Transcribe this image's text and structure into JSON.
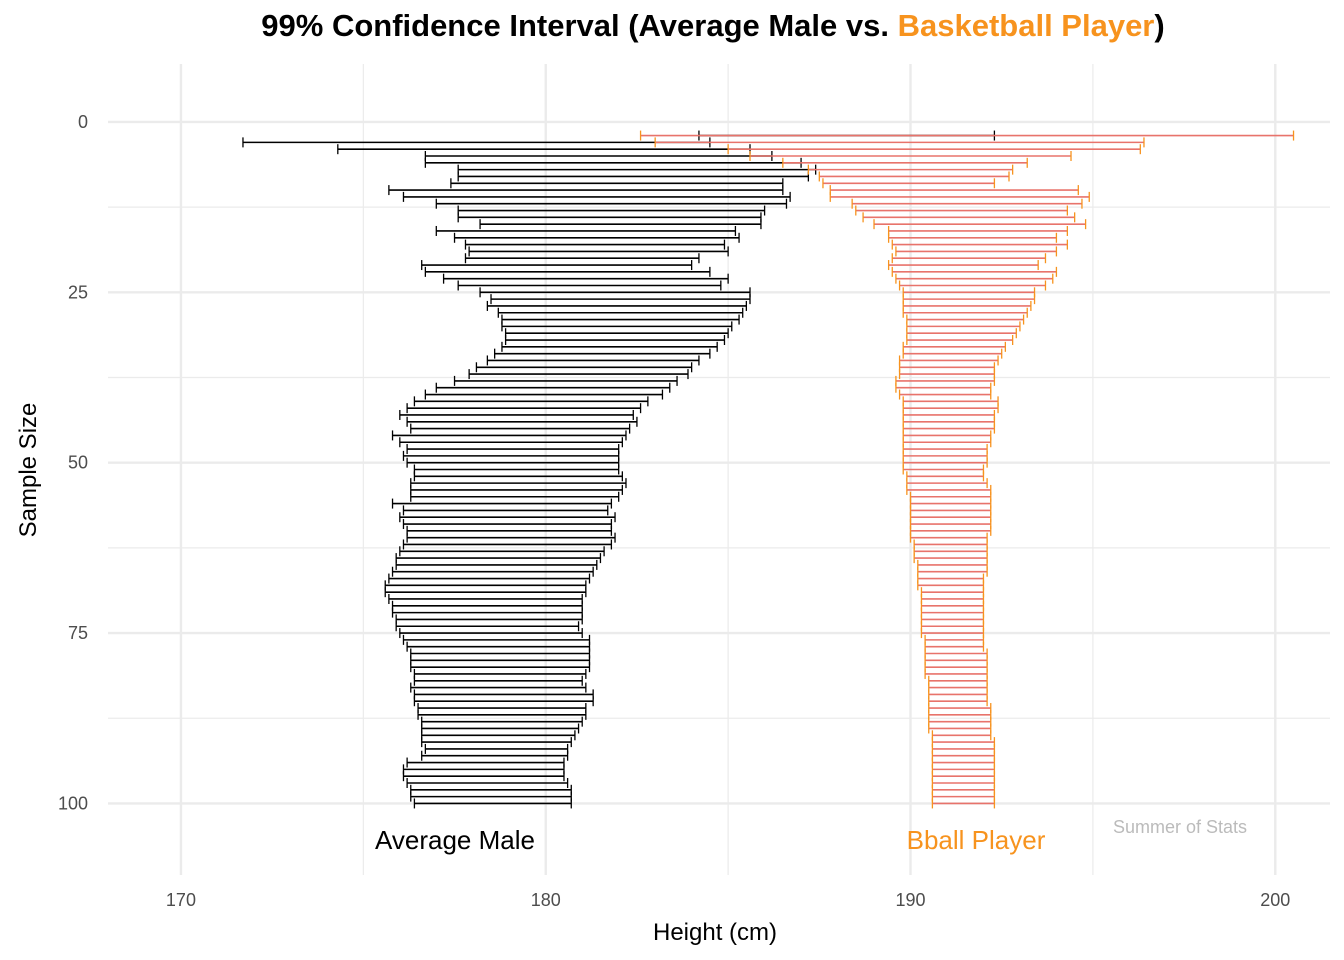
{
  "title": {
    "part1": "99% Confidence Interval (Average Male vs. ",
    "part2": "Basketball Player",
    "part3": ")"
  },
  "colors": {
    "male": "#000000",
    "bball_bar": "#e8736b",
    "bball_cap": "#f7931e",
    "grid": "#ebebeb",
    "credit": "#bbbbbb",
    "highlight": "#f7931e"
  },
  "annotations": {
    "male_label": "Average Male",
    "bball_label": "Bball Player",
    "credit": "Summer of Stats"
  },
  "chart_data": {
    "type": "errorbar-interval",
    "title": "99% Confidence Interval (Average Male vs. Basketball Player)",
    "xlabel": "Height (cm)",
    "ylabel": "Sample Size",
    "xlim": [
      168,
      201.5
    ],
    "ylim": [
      0,
      103
    ],
    "y_reversed": true,
    "x_ticks": [
      170,
      180,
      190,
      200
    ],
    "y_ticks": [
      0,
      25,
      50,
      75,
      100
    ],
    "grid": true,
    "y_start": 2,
    "y_step": 1,
    "series": [
      {
        "name": "Average Male",
        "lower": [
          184.2,
          171.7,
          174.3,
          176.7,
          176.7,
          177.6,
          177.6,
          177.4,
          175.7,
          176.1,
          177.0,
          177.6,
          177.6,
          178.2,
          177.0,
          177.5,
          177.8,
          177.9,
          177.8,
          176.6,
          176.7,
          177.2,
          177.6,
          178.2,
          178.5,
          178.4,
          178.7,
          178.8,
          178.8,
          178.9,
          178.9,
          178.8,
          178.6,
          178.4,
          178.1,
          177.9,
          177.5,
          177.0,
          176.7,
          176.4,
          176.2,
          176.0,
          176.2,
          176.3,
          175.8,
          176.0,
          176.2,
          176.1,
          176.2,
          176.4,
          176.4,
          176.3,
          176.3,
          176.3,
          175.8,
          176.1,
          176.0,
          176.1,
          176.2,
          176.2,
          176.1,
          176.0,
          175.9,
          175.9,
          175.8,
          175.7,
          175.6,
          175.6,
          175.7,
          175.8,
          175.8,
          175.9,
          175.9,
          176.0,
          176.1,
          176.2,
          176.3,
          176.3,
          176.3,
          176.4,
          176.4,
          176.3,
          176.4,
          176.4,
          176.5,
          176.5,
          176.6,
          176.6,
          176.6,
          176.6,
          176.7,
          176.6,
          176.2,
          176.1,
          176.1,
          176.2,
          176.3,
          176.3,
          176.4
        ],
        "upper": [
          192.3,
          184.5,
          185.6,
          186.2,
          187.0,
          187.4,
          187.2,
          186.5,
          186.5,
          186.7,
          186.6,
          186.0,
          185.9,
          185.9,
          185.2,
          185.3,
          184.9,
          185.0,
          184.2,
          184.0,
          184.5,
          185.0,
          184.8,
          185.6,
          185.6,
          185.5,
          185.4,
          185.3,
          185.1,
          185.0,
          184.9,
          184.7,
          184.5,
          184.2,
          184.0,
          183.9,
          183.6,
          183.4,
          183.2,
          182.8,
          182.6,
          182.4,
          182.5,
          182.3,
          182.2,
          182.1,
          182.0,
          182.0,
          182.0,
          182.0,
          182.1,
          182.2,
          182.1,
          182.0,
          181.8,
          181.7,
          181.9,
          181.8,
          181.8,
          181.9,
          181.8,
          181.6,
          181.5,
          181.4,
          181.3,
          181.2,
          181.1,
          181.1,
          181.0,
          181.0,
          181.0,
          181.0,
          180.9,
          181.0,
          181.2,
          181.2,
          181.2,
          181.2,
          181.2,
          181.1,
          181.0,
          181.1,
          181.3,
          181.3,
          181.1,
          181.1,
          181.0,
          180.9,
          180.8,
          180.7,
          180.6,
          180.6,
          180.5,
          180.5,
          180.5,
          180.6,
          180.7,
          180.7,
          180.7
        ]
      },
      {
        "name": "Bball Player",
        "lower": [
          182.6,
          183.0,
          185.0,
          185.6,
          186.5,
          187.2,
          187.5,
          187.6,
          187.8,
          187.8,
          188.4,
          188.5,
          188.7,
          189.0,
          189.4,
          189.4,
          189.5,
          189.6,
          189.5,
          189.4,
          189.5,
          189.6,
          189.7,
          189.8,
          189.8,
          189.8,
          189.8,
          189.9,
          189.9,
          189.9,
          189.9,
          189.8,
          189.8,
          189.7,
          189.7,
          189.7,
          189.6,
          189.6,
          189.7,
          189.8,
          189.8,
          189.8,
          189.8,
          189.8,
          189.8,
          189.8,
          189.8,
          189.8,
          189.8,
          189.8,
          189.9,
          189.9,
          189.9,
          190.0,
          190.0,
          190.0,
          190.0,
          190.0,
          190.0,
          190.0,
          190.1,
          190.1,
          190.1,
          190.2,
          190.2,
          190.2,
          190.2,
          190.3,
          190.3,
          190.3,
          190.3,
          190.3,
          190.3,
          190.3,
          190.4,
          190.4,
          190.4,
          190.4,
          190.4,
          190.4,
          190.5,
          190.5,
          190.5,
          190.5,
          190.5,
          190.5,
          190.5,
          190.5,
          190.6,
          190.6,
          190.6,
          190.6,
          190.6,
          190.6,
          190.6,
          190.6,
          190.6,
          190.6,
          190.6
        ],
        "upper": [
          200.5,
          196.4,
          196.3,
          194.4,
          193.2,
          192.8,
          192.7,
          192.3,
          194.6,
          194.9,
          194.7,
          194.3,
          194.5,
          194.8,
          194.3,
          194.0,
          194.3,
          194.0,
          193.7,
          193.5,
          194.0,
          193.9,
          193.7,
          193.4,
          193.4,
          193.3,
          193.2,
          193.1,
          193.0,
          192.9,
          192.8,
          192.6,
          192.5,
          192.4,
          192.3,
          192.3,
          192.3,
          192.2,
          192.2,
          192.4,
          192.4,
          192.3,
          192.3,
          192.3,
          192.2,
          192.2,
          192.1,
          192.1,
          192.1,
          192.0,
          192.0,
          192.1,
          192.2,
          192.2,
          192.2,
          192.2,
          192.2,
          192.2,
          192.2,
          192.1,
          192.1,
          192.1,
          192.1,
          192.1,
          192.1,
          192.0,
          192.0,
          192.0,
          192.0,
          192.0,
          192.0,
          192.0,
          192.0,
          192.0,
          192.0,
          192.0,
          192.1,
          192.1,
          192.1,
          192.1,
          192.1,
          192.1,
          192.1,
          192.1,
          192.2,
          192.2,
          192.2,
          192.2,
          192.2,
          192.3,
          192.3,
          192.3,
          192.3,
          192.3,
          192.3,
          192.3,
          192.3,
          192.3,
          192.3
        ]
      }
    ]
  }
}
